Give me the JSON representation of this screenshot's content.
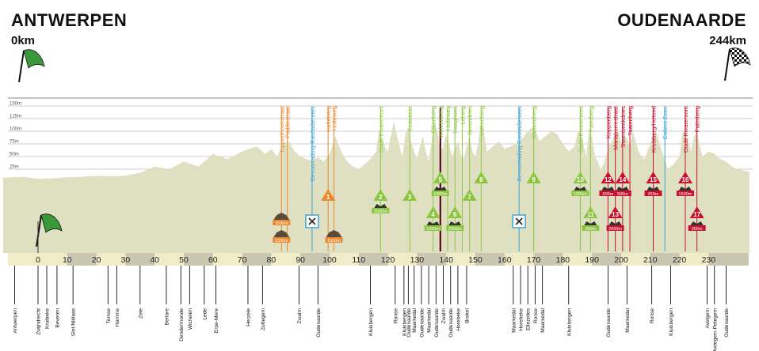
{
  "header": {
    "start_city": "ANTWERPEN",
    "start_km": "0km",
    "finish_city": "OUDENAARDE",
    "finish_km": "244km"
  },
  "altitude_labels": [
    "150m",
    "125m",
    "100m",
    "75m",
    "50m",
    "25m"
  ],
  "altitude_values": [
    150,
    125,
    100,
    75,
    50,
    25
  ],
  "km_ticks": [
    "0",
    "10",
    "20",
    "30",
    "40",
    "50",
    "60",
    "70",
    "80",
    "90",
    "100",
    "110",
    "120",
    "130",
    "140",
    "150",
    "160",
    "170",
    "180",
    "190",
    "200",
    "210",
    "220",
    "230"
  ],
  "colors": {
    "terrain": "#dfe0c2",
    "axis_band": "#f1ecc8",
    "axis_band_dark": "#c9c7b0",
    "cobble": "#e9892f",
    "climb": "#8cc63f",
    "feed": "#3fa4d6",
    "kwaremont": "#c8102e",
    "wolvenberg": "#5a0a18",
    "sector_dark": "#6b1f14"
  },
  "top_labels": [
    {
      "text": "Lippenhovestraat",
      "km": 83.5,
      "type": "cobble"
    },
    {
      "text": "Paddestraat",
      "km": 85.5,
      "type": "cobble"
    },
    {
      "text": "Bevoorrading-Ravitaillement",
      "km": 94,
      "type": "feed"
    },
    {
      "text": "Katteberg",
      "km": 99.5,
      "type": "cobble"
    },
    {
      "text": "Holleweg",
      "km": 101.5,
      "type": "cobble"
    },
    {
      "text": "Oude Kwaremont",
      "km": 117.5,
      "type": "climb"
    },
    {
      "text": "Kortekeer",
      "km": 127.5,
      "type": "climb"
    },
    {
      "text": "Eikenberg",
      "km": 135.5,
      "type": "climb"
    },
    {
      "text": "Wolvenberg",
      "km": 138,
      "type": "climb"
    },
    {
      "text": "Holleweg",
      "km": 140.5,
      "type": "climb"
    },
    {
      "text": "Haaghoek",
      "km": 143,
      "type": "climb"
    },
    {
      "text": "Leberg",
      "km": 145.5,
      "type": "climb"
    },
    {
      "text": "Berendries",
      "km": 148,
      "type": "climb"
    },
    {
      "text": "Valkenberg",
      "km": 152,
      "type": "climb"
    },
    {
      "text": "Bevoorrading-Ravitaillement",
      "km": 165,
      "type": "feed"
    },
    {
      "text": "Kanarieberg",
      "km": 170,
      "type": "climb"
    },
    {
      "text": "Oude Kwaremont",
      "km": 186,
      "type": "climb"
    },
    {
      "text": "Paterberg",
      "km": 189.5,
      "type": "climb"
    },
    {
      "text": "Koppenberg",
      "km": 195.5,
      "type": "kwaremont"
    },
    {
      "text": "Mariaborrestraat",
      "km": 198,
      "type": "kwaremont"
    },
    {
      "text": "Steenbeekdries",
      "km": 200.5,
      "type": "kwaremont"
    },
    {
      "text": "Taaienberg",
      "km": 203,
      "type": "kwaremont"
    },
    {
      "text": "Kruisberg/Hotond",
      "km": 211,
      "type": "kwaremont"
    },
    {
      "text": "Collect Zone",
      "km": 215,
      "type": "feed"
    },
    {
      "text": "Oude Kwaremont",
      "km": 222,
      "type": "kwaremont"
    },
    {
      "text": "Paterberg",
      "km": 226,
      "type": "kwaremont"
    }
  ],
  "climbs": [
    {
      "num": "1",
      "km": 99.5,
      "row": "top",
      "type": "cobble",
      "dist": ""
    },
    {
      "num": "2",
      "km": 117.5,
      "row": "top",
      "type": "climb",
      "dist": "1500m"
    },
    {
      "num": "3",
      "km": 127.5,
      "row": "top",
      "type": "climb",
      "dist": ""
    },
    {
      "num": "4",
      "km": 135.5,
      "row": "low",
      "type": "climb",
      "dist": "1200m"
    },
    {
      "num": "5",
      "km": 138,
      "row": "high",
      "type": "climb",
      "dist": "1500m"
    },
    {
      "num": "6",
      "km": 143,
      "row": "low",
      "type": "climb",
      "dist": "2000m"
    },
    {
      "num": "7",
      "km": 148,
      "row": "top",
      "type": "climb",
      "dist": ""
    },
    {
      "num": "8",
      "km": 152,
      "row": "high",
      "type": "climb",
      "dist": ""
    },
    {
      "num": "9",
      "km": 170,
      "row": "high",
      "type": "climb",
      "dist": ""
    },
    {
      "num": "10",
      "km": 186,
      "row": "high",
      "type": "climb",
      "dist": "1500m"
    },
    {
      "num": "11",
      "km": 189.5,
      "row": "low",
      "type": "climb",
      "dist": "360m"
    },
    {
      "num": "12",
      "km": 195.5,
      "row": "high",
      "type": "kwaremont",
      "dist": "600m"
    },
    {
      "num": "13",
      "km": 198,
      "row": "low",
      "type": "kwaremont",
      "dist": "2000m"
    },
    {
      "num": "14",
      "km": 200.5,
      "row": "high",
      "type": "kwaremont",
      "dist": "500m"
    },
    {
      "num": "15",
      "km": 211,
      "row": "high",
      "type": "kwaremont",
      "dist": "450m"
    },
    {
      "num": "16",
      "km": 222,
      "row": "high",
      "type": "kwaremont",
      "dist": "1500m"
    },
    {
      "num": "17",
      "km": 226,
      "row": "low",
      "type": "kwaremont",
      "dist": "360m"
    }
  ],
  "cobble_sectors": [
    {
      "km": 83.5,
      "dist": "1500m",
      "row": "high"
    },
    {
      "km": 83.5,
      "dist": "1300m",
      "row": "low"
    },
    {
      "km": 101.5,
      "dist": "1500m",
      "row": "low"
    }
  ],
  "feed_icons": [
    {
      "km": 94
    },
    {
      "km": 165
    }
  ],
  "places": [
    {
      "text": "Antwerpen",
      "km": -8
    },
    {
      "text": "Zwijndrecht",
      "km": 0
    },
    {
      "text": "Kruibeke",
      "km": 3
    },
    {
      "text": "Beveren",
      "km": 6.5
    },
    {
      "text": "Sint-Niklaas",
      "km": 12
    },
    {
      "text": "Temse",
      "km": 24
    },
    {
      "text": "Hamme",
      "km": 27
    },
    {
      "text": "Zele",
      "km": 35
    },
    {
      "text": "Berlare",
      "km": 44
    },
    {
      "text": "Dendermonde",
      "km": 49
    },
    {
      "text": "Wichelen",
      "km": 52
    },
    {
      "text": "Lede",
      "km": 57
    },
    {
      "text": "Erpe-Mere",
      "km": 61
    },
    {
      "text": "Herzele",
      "km": 72
    },
    {
      "text": "Zottegem",
      "km": 77
    },
    {
      "text": "Zwalm",
      "km": 89.5
    },
    {
      "text": "Oudenaarde",
      "km": 96
    },
    {
      "text": "Kluisbergen",
      "km": 114
    },
    {
      "text": "Ronse",
      "km": 122.5
    },
    {
      "text": "Kluisbergen",
      "km": 125.5
    },
    {
      "text": "Oudenaarde",
      "km": 127
    },
    {
      "text": "Maarkedal",
      "km": 129
    },
    {
      "text": "Oudenaarde",
      "km": 131.5
    },
    {
      "text": "Maarkedal",
      "km": 134
    },
    {
      "text": "Oudenaarde",
      "km": 136.5
    },
    {
      "text": "Zwalm",
      "km": 139
    },
    {
      "text": "Oudenaarde",
      "km": 141.5
    },
    {
      "text": "Horebeke",
      "km": 144
    },
    {
      "text": "Brakel",
      "km": 147
    },
    {
      "text": "Maarkedal",
      "km": 163
    },
    {
      "text": "Horebeke",
      "km": 165.5
    },
    {
      "text": "Ellezelles",
      "km": 168
    },
    {
      "text": "Ronse",
      "km": 170.5
    },
    {
      "text": "Maarkedal",
      "km": 173
    },
    {
      "text": "Kluisbergen",
      "km": 182
    },
    {
      "text": "Oudenaarde",
      "km": 195.5
    },
    {
      "text": "Maarkedal",
      "km": 202
    },
    {
      "text": "Ronse",
      "km": 210.5
    },
    {
      "text": "Kluisbergen",
      "km": 217
    },
    {
      "text": "Avelgem",
      "km": 229.5
    },
    {
      "text": "Wortegem-Petegem",
      "km": 232
    },
    {
      "text": "Oudenaarde",
      "km": 236
    }
  ],
  "chart_data": {
    "type": "area",
    "title": "ANTWERPEN - OUDENAARDE",
    "xlabel": "km",
    "ylabel": "m",
    "xlim": [
      0,
      244
    ],
    "ylim": [
      0,
      150
    ],
    "x": [
      -12,
      -5,
      0,
      5,
      10,
      15,
      20,
      25,
      30,
      35,
      40,
      45,
      50,
      55,
      60,
      65,
      70,
      75,
      78,
      80,
      82,
      84,
      86,
      88,
      90,
      92,
      94,
      96,
      98,
      100,
      102,
      104,
      106,
      108,
      110,
      112,
      114,
      116,
      117,
      118,
      119,
      120,
      121,
      122,
      123,
      124,
      125,
      126,
      127,
      128,
      129,
      130,
      131,
      132,
      133,
      134,
      135,
      136,
      137,
      138,
      139,
      140,
      141,
      142,
      143,
      144,
      145,
      146,
      147,
      148,
      149,
      150,
      151,
      152,
      153,
      154,
      156,
      158,
      160,
      162,
      164,
      166,
      168,
      170,
      172,
      174,
      176,
      178,
      180,
      182,
      184,
      185,
      186,
      187,
      188,
      189,
      190,
      191,
      192,
      193,
      194,
      195,
      196,
      197,
      198,
      199,
      200,
      201,
      202,
      203,
      204,
      205,
      206,
      207,
      208,
      209,
      210,
      211,
      212,
      213,
      214,
      215,
      216,
      218,
      220,
      221,
      222,
      223,
      224,
      225,
      226,
      227,
      228,
      230,
      232,
      234,
      236,
      238,
      240,
      244
    ],
    "y": [
      8,
      10,
      6,
      7,
      9,
      10,
      12,
      11,
      12,
      18,
      30,
      25,
      40,
      30,
      55,
      45,
      60,
      70,
      55,
      65,
      50,
      75,
      80,
      60,
      50,
      45,
      42,
      48,
      40,
      55,
      90,
      60,
      40,
      30,
      25,
      35,
      45,
      60,
      105,
      85,
      70,
      60,
      90,
      120,
      95,
      70,
      50,
      95,
      110,
      80,
      60,
      45,
      70,
      90,
      60,
      40,
      80,
      120,
      100,
      60,
      70,
      95,
      75,
      50,
      65,
      80,
      55,
      45,
      70,
      90,
      60,
      50,
      80,
      115,
      95,
      60,
      70,
      80,
      65,
      70,
      75,
      85,
      100,
      110,
      80,
      90,
      100,
      95,
      75,
      60,
      70,
      95,
      105,
      75,
      50,
      100,
      90,
      50,
      40,
      25,
      35,
      55,
      75,
      80,
      95,
      100,
      75,
      90,
      85,
      70,
      100,
      80,
      60,
      50,
      45,
      60,
      75,
      90,
      100,
      80,
      60,
      45,
      25,
      35,
      50,
      95,
      105,
      80,
      60,
      90,
      100,
      70,
      50,
      60,
      55,
      45,
      40,
      30,
      25,
      20
    ]
  }
}
